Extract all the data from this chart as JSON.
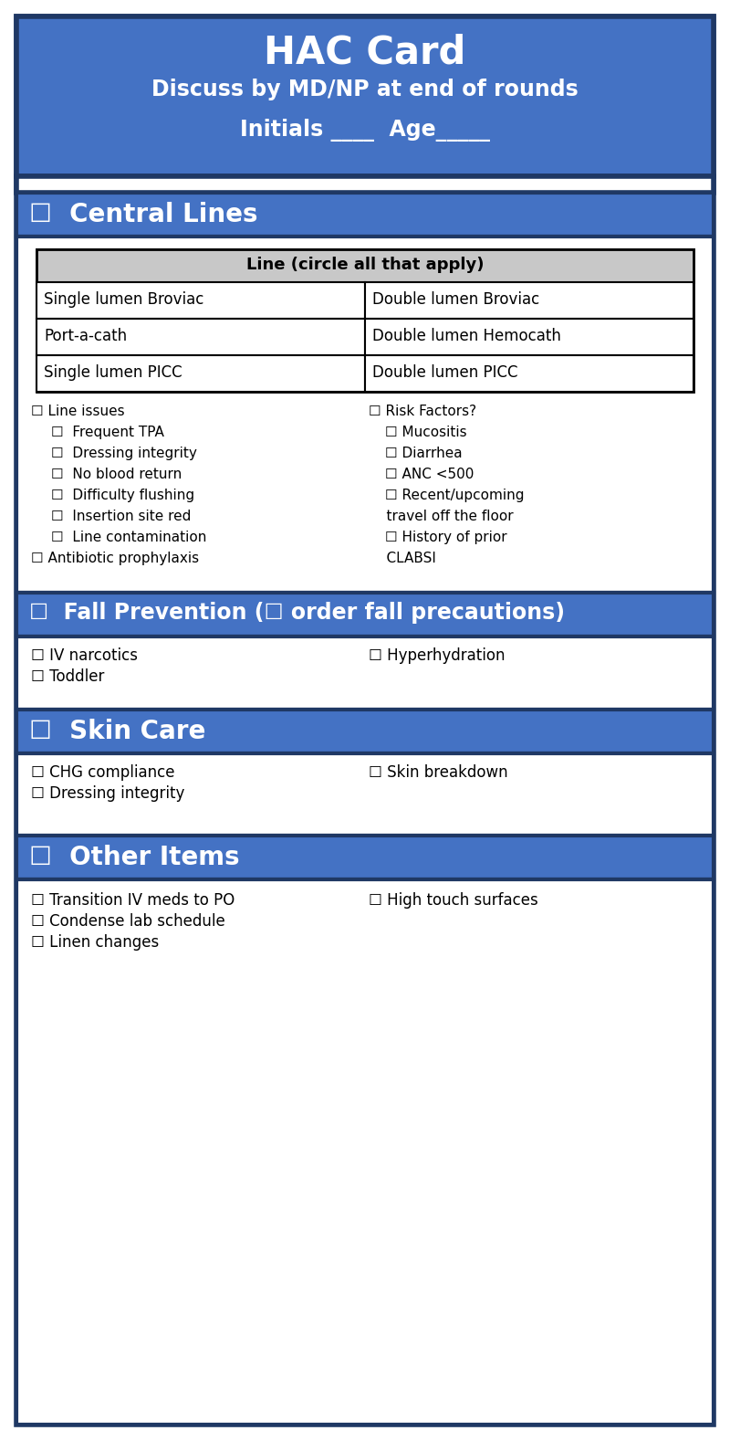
{
  "blue": "#4472C4",
  "white": "#FFFFFF",
  "black": "#000000",
  "light_gray": "#C8C8C8",
  "border_dark": "#1F3864",
  "title_text": "HAC Card",
  "subtitle1": "Discuss by MD/NP at end of rounds",
  "subtitle2": "Initials ____  Age_____",
  "section_headers": [
    "☐  Central Lines",
    "☐  Fall Prevention (☐ order fall precautions)",
    "☐  Skin Care",
    "☐  Other Items"
  ],
  "table_header": "Line (circle all that apply)",
  "table_rows": [
    [
      "Single lumen Broviac",
      "Double lumen Broviac"
    ],
    [
      "Port-a-cath",
      "Double lumen Hemocath"
    ],
    [
      "Single lumen PICC",
      "Double lumen PICC"
    ]
  ],
  "central_lines_left": [
    [
      "☐ Line issues",
      false
    ],
    [
      "☐  Frequent TPA",
      true
    ],
    [
      "☐  Dressing integrity",
      true
    ],
    [
      "☐  No blood return",
      true
    ],
    [
      "☐  Difficulty flushing",
      true
    ],
    [
      "☐  Insertion site red",
      true
    ],
    [
      "☐  Line contamination",
      true
    ],
    [
      "☐ Antibiotic prophylaxis",
      false
    ]
  ],
  "central_lines_right": [
    [
      "☐ Risk Factors?",
      false
    ],
    [
      "☐ Mucositis",
      true
    ],
    [
      "☐ Diarrhea",
      true
    ],
    [
      "☐ ANC <500",
      true
    ],
    [
      "☐ Recent/upcoming",
      true
    ],
    [
      "    travel off the floor",
      false
    ],
    [
      "☐ History of prior",
      true
    ],
    [
      "    CLABSI",
      false
    ]
  ],
  "fall_items_left": [
    "☐ IV narcotics",
    "☐ Toddler"
  ],
  "fall_items_right": [
    "☐ Hyperhydration"
  ],
  "skin_items_left": [
    "☐ CHG compliance",
    "☐ Dressing integrity"
  ],
  "skin_items_right": [
    "☐ Skin breakdown"
  ],
  "other_items_left": [
    "☐ Transition IV meds to PO",
    "☐ Condense lab schedule",
    "☐ Linen changes"
  ],
  "other_items_right": [
    "☐ High touch surfaces"
  ],
  "fig_width": 8.0,
  "fig_height": 15.78,
  "dpi": 100
}
